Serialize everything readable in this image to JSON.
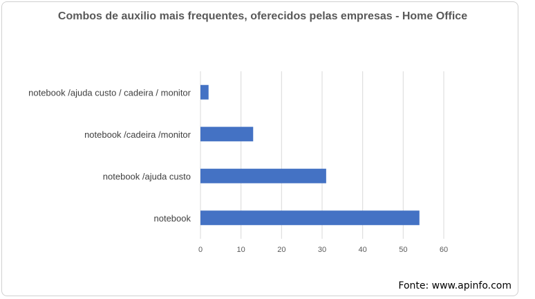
{
  "chart_data": {
    "type": "bar",
    "orientation": "horizontal",
    "title": "Combos de auxilio mais frequentes, oferecidos pelas empresas - Home Office",
    "categories": [
      "notebook /ajuda custo / cadeira / monitor",
      "notebook /cadeira /monitor",
      "notebook /ajuda custo",
      "notebook"
    ],
    "values": [
      2,
      13,
      31,
      54
    ],
    "xlim": [
      0,
      60
    ],
    "ticks": [
      0,
      10,
      20,
      30,
      40,
      50,
      60
    ],
    "grid": true,
    "bar_color": "#4472C4",
    "grid_color": "#D9D9D9"
  },
  "source": "Fonte: www.apinfo.com"
}
